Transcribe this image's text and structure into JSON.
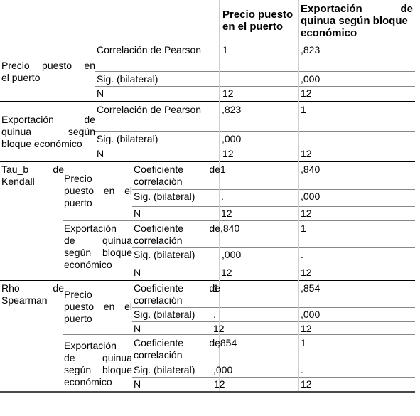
{
  "header": {
    "col1": [
      "Precio puesto",
      "en el puerto"
    ],
    "col2_line1": [
      "Exportación",
      "de"
    ],
    "col2_rest": [
      "quinua según bloque",
      "económico"
    ]
  },
  "stats": {
    "pearson": "Correlación de Pearson",
    "sig": "Sig. (bilateral)",
    "n": "N",
    "coef1": [
      "Coeficiente",
      "de"
    ],
    "coef2": "correlación"
  },
  "vars": {
    "precio_1": [
      "Precio",
      "puesto",
      "en"
    ],
    "precio_2": "el puerto",
    "exp_1": [
      "Exportación",
      "de"
    ],
    "exp_2": [
      "quinua",
      "según"
    ],
    "exp_3": "bloque económico",
    "precio_nested_1": "Precio",
    "precio_nested_2": [
      "puesto",
      "en",
      "el"
    ],
    "precio_nested_3": "puerto",
    "exp_nested_1": "Exportación",
    "exp_nested_2": [
      "de",
      "quinua"
    ],
    "exp_nested_3": [
      "según",
      "bloque"
    ],
    "exp_nested_4": "económico"
  },
  "methods": {
    "tau_1": [
      "Tau_b",
      "de"
    ],
    "tau_2": "Kendall",
    "rho_1": [
      "Rho",
      "de"
    ],
    "rho_2": "Spearman"
  },
  "pearson": {
    "precio": {
      "corr_col1": "1",
      "corr_col2": ",823",
      "sig_col2": ",000",
      "n_col1": "12",
      "n_col2": "12"
    },
    "export": {
      "corr_col1": ",823",
      "corr_col2": "1",
      "sig_col1": ",000",
      "n_col1": "12",
      "n_col2": "12"
    }
  },
  "kendall": {
    "precio": {
      "coef_col1": "1",
      "coef_col2": ",840",
      "sig_col1": ".",
      "sig_col2": ",000",
      "n_col1": "12",
      "n_col2": "12"
    },
    "export": {
      "coef_col1": ",840",
      "coef_col2": "1",
      "sig_col1": ",000",
      "sig_col2": ".",
      "n_col1": "12",
      "n_col2": "12"
    }
  },
  "spearman": {
    "precio": {
      "coef_col1": "1",
      "coef_col2": ",854",
      "sig_col1": ".",
      "sig_col2": ",000",
      "n_col1": "12",
      "n_col2": "12"
    },
    "export": {
      "coef_col1": ",854",
      "coef_col2": "1",
      "sig_col1": ",000",
      "sig_col2": ".",
      "n_col1": "12",
      "n_col2": "12"
    }
  }
}
